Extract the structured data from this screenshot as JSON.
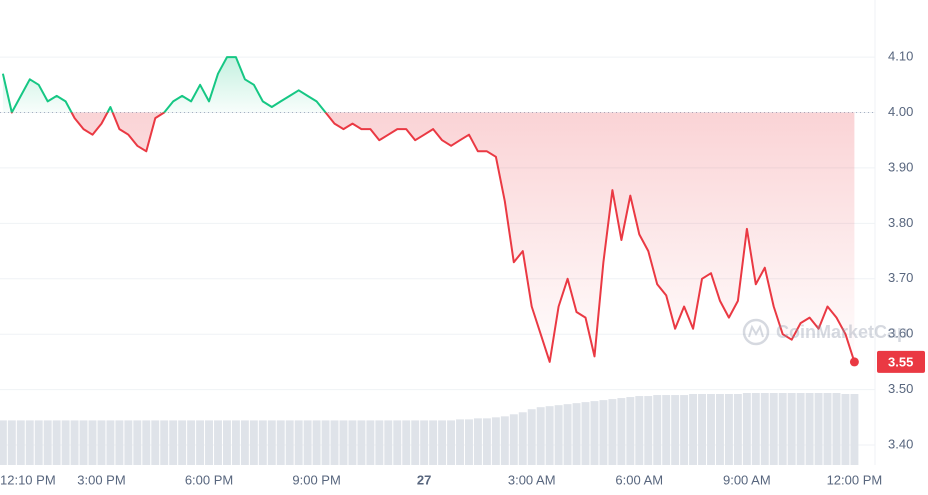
{
  "chart_data": {
    "type": "line",
    "x": [
      0.25,
      0.5,
      0.75,
      1,
      1.25,
      1.5,
      1.75,
      2,
      2.25,
      2.5,
      2.75,
      3,
      3.25,
      3.5,
      3.75,
      4,
      4.25,
      4.5,
      4.75,
      5,
      5.25,
      5.5,
      5.75,
      6,
      6.25,
      6.5,
      6.75,
      7,
      7.25,
      7.5,
      7.75,
      8,
      8.25,
      8.5,
      8.75,
      9,
      9.25,
      9.5,
      9.75,
      10,
      10.25,
      10.5,
      10.75,
      11,
      11.25,
      11.5,
      11.75,
      12,
      12.25,
      12.5,
      12.75,
      13,
      13.25,
      13.5,
      13.75,
      14,
      14.25,
      14.5,
      14.75,
      15,
      15.25,
      15.5,
      15.75,
      16,
      16.25,
      16.5,
      16.75,
      17,
      17.25,
      17.5,
      17.75,
      18,
      18.25,
      18.5,
      18.75,
      19,
      19.25,
      19.5,
      19.75,
      20,
      20.25,
      20.5,
      20.75,
      21,
      21.25,
      21.5,
      21.75,
      22,
      22.25,
      22.5,
      22.75,
      23,
      23.25,
      23.5,
      23.75,
      24
    ],
    "values": [
      4.07,
      4.0,
      4.03,
      4.06,
      4.05,
      4.02,
      4.03,
      4.02,
      3.99,
      3.97,
      3.96,
      3.98,
      4.01,
      3.97,
      3.96,
      3.94,
      3.93,
      3.99,
      4.0,
      4.02,
      4.03,
      4.02,
      4.05,
      4.02,
      4.07,
      4.1,
      4.1,
      4.06,
      4.05,
      4.02,
      4.01,
      4.02,
      4.03,
      4.04,
      4.03,
      4.02,
      4.0,
      3.98,
      3.97,
      3.98,
      3.97,
      3.97,
      3.95,
      3.96,
      3.97,
      3.97,
      3.95,
      3.96,
      3.97,
      3.95,
      3.94,
      3.95,
      3.96,
      3.93,
      3.93,
      3.92,
      3.84,
      3.73,
      3.75,
      3.65,
      3.6,
      3.55,
      3.65,
      3.7,
      3.64,
      3.63,
      3.56,
      3.73,
      3.86,
      3.77,
      3.85,
      3.78,
      3.75,
      3.69,
      3.67,
      3.61,
      3.65,
      3.61,
      3.7,
      3.71,
      3.66,
      3.63,
      3.66,
      3.79,
      3.69,
      3.72,
      3.65,
      3.6,
      3.59,
      3.62,
      3.63,
      3.61,
      3.65,
      3.63,
      3.6,
      3.55
    ],
    "volume": [
      44,
      44,
      44,
      44,
      44,
      44,
      44,
      44,
      44,
      44,
      44,
      44,
      44,
      44,
      44,
      44,
      44,
      44,
      44,
      44,
      44,
      44,
      44,
      44,
      44,
      44,
      44,
      44,
      44,
      44,
      44,
      44,
      44,
      44,
      44,
      44,
      44,
      44,
      44,
      44,
      44,
      44,
      44,
      44,
      44,
      44,
      44,
      44,
      44,
      44,
      44,
      45,
      45,
      46,
      46,
      47,
      48,
      50,
      52,
      55,
      57,
      58,
      59,
      60,
      61,
      62,
      63,
      64,
      65,
      66,
      67,
      68,
      68,
      69,
      69,
      69,
      69,
      70,
      70,
      70,
      70,
      70,
      70,
      71,
      71,
      71,
      71,
      71,
      71,
      71,
      71,
      71,
      71,
      71,
      70,
      70
    ],
    "baseline": 4.0,
    "price_tag": 3.55,
    "watermark": "CoinMarketCap",
    "up_color": "#16c784",
    "down_color": "#ea3943",
    "volume_color": "#dfe3e9",
    "xlim": [
      0.17,
      24.1
    ],
    "xticks": [
      {
        "value": 0.17,
        "label": "12:10 PM"
      },
      {
        "value": 3,
        "label": "3:00 PM"
      },
      {
        "value": 6,
        "label": "6:00 PM"
      },
      {
        "value": 9,
        "label": "9:00 PM"
      },
      {
        "value": 12,
        "label": "27"
      },
      {
        "value": 15,
        "label": "3:00 AM"
      },
      {
        "value": 18,
        "label": "6:00 AM"
      },
      {
        "value": 21,
        "label": "9:00 AM"
      },
      {
        "value": 24,
        "label": "12:00 PM"
      }
    ],
    "ylim": [
      3.364,
      4.203
    ],
    "yticks": [
      {
        "value": 3.4,
        "label": "3.40"
      },
      {
        "value": 3.5,
        "label": "3.50"
      },
      {
        "value": 3.6,
        "label": "3.60"
      },
      {
        "value": 3.7,
        "label": "3.70"
      },
      {
        "value": 3.8,
        "label": "3.80"
      },
      {
        "value": 3.9,
        "label": "3.90"
      },
      {
        "value": 4.0,
        "label": "4.00"
      },
      {
        "value": 4.1,
        "label": "4.10"
      }
    ],
    "grid": true
  }
}
